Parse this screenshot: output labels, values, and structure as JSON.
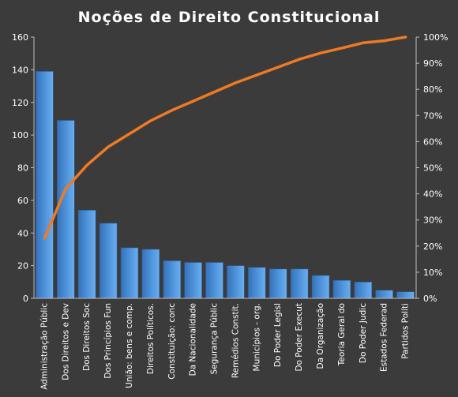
{
  "chart_data": {
    "type": "bar",
    "title": "Noções de Direito  Constitucional",
    "categories": [
      "Administração Públic",
      "Dos Direitos e Dev",
      "Dos Direitos Soc",
      "Dos Princípios Fun",
      "União: bens e comp.",
      "Direitos Políticos.",
      "Constituição: conc",
      "Da Nacionalidade",
      "Segurança Públic",
      "Remédios Constit.",
      "Municípios - org.",
      "Do Poder Legisl",
      "Do Poder Execut",
      "Da Organização",
      "Teoria Geral do",
      "Do Poder Judic",
      "Estados Federad",
      "Partidos Políti"
    ],
    "series": [
      {
        "type": "bar",
        "axis": "left",
        "color": "#4a8fd6",
        "values": [
          139,
          109,
          54,
          46,
          31,
          30,
          23,
          22,
          22,
          20,
          19,
          18,
          18,
          14,
          11,
          10,
          5,
          4
        ]
      },
      {
        "type": "line",
        "axis": "right",
        "color": "#f07a24",
        "values": [
          23,
          42,
          51,
          58,
          63,
          68,
          72,
          75.5,
          79,
          82.5,
          85.5,
          88.5,
          91.5,
          93.9,
          95.8,
          97.8,
          98.6,
          100
        ]
      }
    ],
    "ylim": [
      0,
      160
    ],
    "y2lim": [
      0,
      100
    ],
    "yticks": [
      "0",
      "20",
      "40",
      "60",
      "80",
      "100",
      "120",
      "140",
      "160"
    ],
    "y2ticks": [
      "0%",
      "10%",
      "20%",
      "30%",
      "40%",
      "50%",
      "60%",
      "70%",
      "80%",
      "90%",
      "100%"
    ],
    "grid": false,
    "legend": "none"
  }
}
